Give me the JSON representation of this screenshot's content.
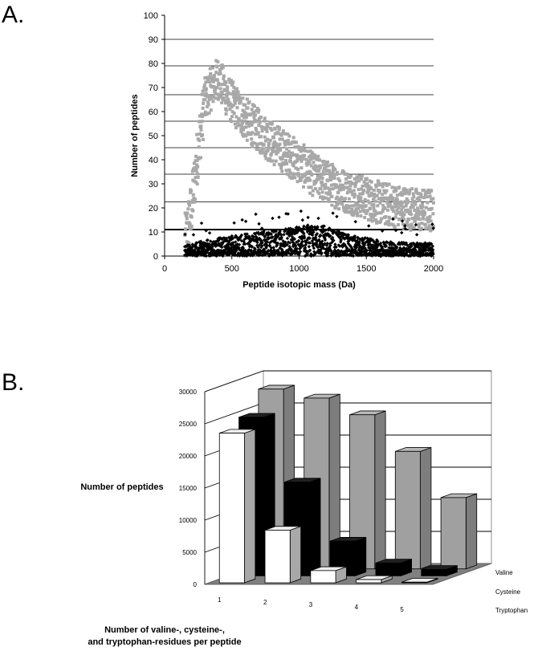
{
  "chart_data": [
    {
      "panel": "A.",
      "type": "scatter",
      "xlabel": "Peptide isotopic mass (Da)",
      "ylabel": "Number of peptides",
      "xlim": [
        0,
        2000
      ],
      "ylim": [
        0,
        100
      ],
      "x_ticks": [
        0,
        500,
        1000,
        1500,
        2000
      ],
      "y_ticks": [
        0,
        10,
        20,
        30,
        40,
        50,
        60,
        70,
        80,
        90,
        100
      ],
      "horizontal_lines": [
        11,
        22.5,
        34,
        45,
        56,
        67,
        79,
        90
      ],
      "bold_line": 11,
      "series": [
        {
          "color": "#a8a8a8",
          "marker": "square",
          "trend": [
            [
              150,
              5
            ],
            [
              200,
              20
            ],
            [
              250,
              45
            ],
            [
              300,
              65
            ],
            [
              350,
              70
            ],
            [
              400,
              74
            ],
            [
              450,
              68
            ],
            [
              500,
              64
            ],
            [
              600,
              57
            ],
            [
              700,
              52
            ],
            [
              800,
              47
            ],
            [
              900,
              43
            ],
            [
              1000,
              39
            ],
            [
              1100,
              34
            ],
            [
              1200,
              31
            ],
            [
              1300,
              28
            ],
            [
              1400,
              26
            ],
            [
              1500,
              24
            ],
            [
              1600,
              22
            ],
            [
              1700,
              21
            ],
            [
              1800,
              20
            ],
            [
              1900,
              19
            ],
            [
              2000,
              19
            ]
          ]
        },
        {
          "color": "#000000",
          "marker": "diamond",
          "trend": [
            [
              150,
              1
            ],
            [
              300,
              2
            ],
            [
              500,
              3
            ],
            [
              800,
              4
            ],
            [
              1000,
              5
            ],
            [
              1200,
              5
            ],
            [
              1400,
              3
            ],
            [
              1600,
              2
            ],
            [
              1800,
              1.5
            ],
            [
              2000,
              1.5
            ]
          ]
        }
      ]
    },
    {
      "panel": "B.",
      "type": "bar",
      "ylabel": "Number of peptides",
      "xlabel_line1": "Number of valine-, cysteine-,",
      "xlabel_line2": "and tryptophan-residues per peptide",
      "categories": [
        "1",
        "2",
        "3",
        "4",
        "5"
      ],
      "ylim": [
        0,
        30000
      ],
      "y_ticks": [
        0,
        5000,
        10000,
        15000,
        20000,
        25000,
        30000
      ],
      "series": [
        {
          "name": "Tryptophan",
          "color": "#ffffff",
          "values": [
            23300,
            8200,
            1900,
            500,
            100
          ]
        },
        {
          "name": "Cysteine",
          "color": "#000000",
          "values": [
            24700,
            14600,
            5400,
            2000,
            1000
          ]
        },
        {
          "name": "Valine",
          "color": "#a0a0a0",
          "values": [
            28000,
            26600,
            24000,
            18300,
            11100
          ]
        }
      ]
    }
  ]
}
